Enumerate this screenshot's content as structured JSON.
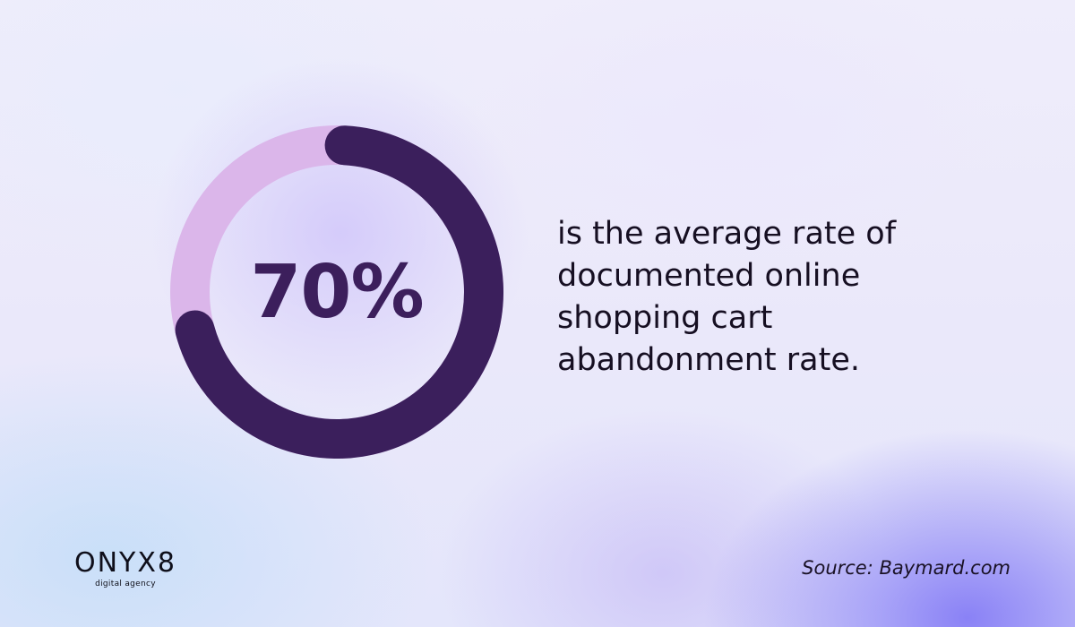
{
  "chart_data": {
    "type": "pie",
    "style": "donut",
    "values": [
      70,
      30
    ],
    "center_label": "70%",
    "colors": [
      "#3b1f5c",
      "#dbb6ea"
    ]
  },
  "statement": {
    "lines": [
      "is the average rate of",
      "documented online",
      "shopping cart",
      "abandonment rate."
    ]
  },
  "source": "Source: Baymard.com",
  "logo": {
    "wordmark": "ONYX8",
    "tagline": "digital agency"
  }
}
